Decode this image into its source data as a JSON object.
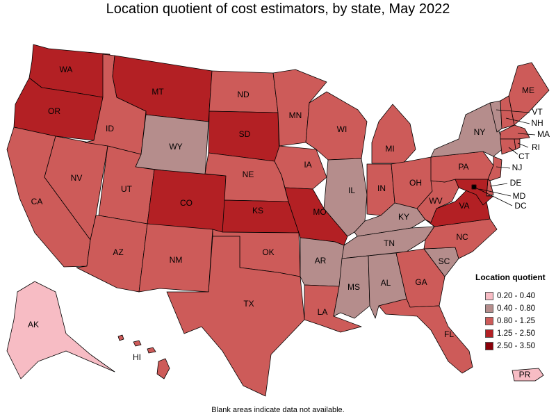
{
  "title": "Location quotient of cost estimators, by state, May 2022",
  "footnote": "Blank areas indicate data not available.",
  "legend": {
    "title": "Location quotient",
    "bins": [
      {
        "label": "0.20 - 0.40",
        "color": "#f7bcc4"
      },
      {
        "label": "0.40 - 0.80",
        "color": "#b58d8c"
      },
      {
        "label": "0.80 - 1.25",
        "color": "#cd5b59"
      },
      {
        "label": "1.25 - 2.50",
        "color": "#b32024"
      },
      {
        "label": "2.50 - 3.50",
        "color": "#8a0009"
      }
    ]
  },
  "states": {
    "WA": 3,
    "OR": 3,
    "CA": 2,
    "NV": 2,
    "ID": 2,
    "MT": 3,
    "WY": 1,
    "UT": 2,
    "AZ": 2,
    "CO": 3,
    "NM": 2,
    "ND": 2,
    "SD": 3,
    "NE": 2,
    "KS": 3,
    "OK": 2,
    "TX": 2,
    "MN": 2,
    "IA": 2,
    "MO": 3,
    "AR": 1,
    "LA": 2,
    "WI": 2,
    "IL": 1,
    "MI": 2,
    "IN": 2,
    "OH": 2,
    "KY": 1,
    "TN": 1,
    "MS": 1,
    "AL": 1,
    "GA": 2,
    "FL": 2,
    "SC": 1,
    "NC": 2,
    "VA": 3,
    "WV": 2,
    "PA": 2,
    "NY": 1,
    "ME": 2,
    "VT": 1,
    "NH": 2,
    "MA": 2,
    "RI": 2,
    "CT": 2,
    "NJ": 2,
    "DE": 2,
    "MD": 3,
    "DC": 4,
    "AK": 0,
    "HI": 2,
    "PR": 0
  }
}
